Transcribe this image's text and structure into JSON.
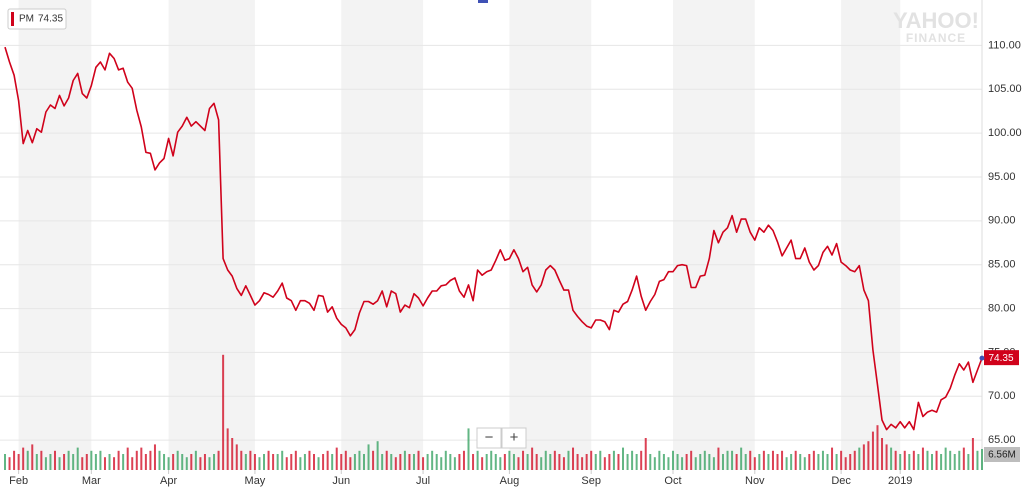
{
  "chart_data": {
    "type": "line",
    "series": [
      {
        "name": "PM",
        "color": "#d0021b",
        "values": [
          109.8,
          108.1,
          106.6,
          103.7,
          98.8,
          100.3,
          98.9,
          100.5,
          100.1,
          102.4,
          103.2,
          102.8,
          104.3,
          103.1,
          104.0,
          106.0,
          106.8,
          104.5,
          104.0,
          105.4,
          107.5,
          108.1,
          107.2,
          109.1,
          108.5,
          107.2,
          107.4,
          105.8,
          105.1,
          102.6,
          100.7,
          97.8,
          97.7,
          95.8,
          96.6,
          97.1,
          99.4,
          97.4,
          100.1,
          100.8,
          101.8,
          100.8,
          101.3,
          100.8,
          100.3,
          102.8,
          103.4,
          101.5,
          85.7,
          84.4,
          83.7,
          82.3,
          81.5,
          82.6,
          81.5,
          80.4,
          80.9,
          81.8,
          81.6,
          81.3,
          82.0,
          82.9,
          81.2,
          80.9,
          79.8,
          80.9,
          80.9,
          80.6,
          79.8,
          81.5,
          81.4,
          79.6,
          80.2,
          78.9,
          78.2,
          77.8,
          76.9,
          77.6,
          79.5,
          80.8,
          80.8,
          80.5,
          80.9,
          82.0,
          80.2,
          82.0,
          81.7,
          79.6,
          80.4,
          80.1,
          81.7,
          81.2,
          80.3,
          81.2,
          82.0,
          82.0,
          82.6,
          82.7,
          83.2,
          83.5,
          82.0,
          81.3,
          82.7,
          80.9,
          84.4,
          83.8,
          84.2,
          84.4,
          85.5,
          86.7,
          85.5,
          85.7,
          86.7,
          85.7,
          84.2,
          84.7,
          82.7,
          81.9,
          82.7,
          84.4,
          84.9,
          84.4,
          83.2,
          82.1,
          82.1,
          79.8,
          79.1,
          78.5,
          78.0,
          77.8,
          78.7,
          78.7,
          78.5,
          77.6,
          79.8,
          79.6,
          80.5,
          80.8,
          82.1,
          83.7,
          81.4,
          79.8,
          80.8,
          81.6,
          83.1,
          83.3,
          84.2,
          84.2,
          84.9,
          85.0,
          84.9,
          82.4,
          82.4,
          83.7,
          83.8,
          85.7,
          88.9,
          87.5,
          88.7,
          89.2,
          90.6,
          88.7,
          90.2,
          90.2,
          88.7,
          87.8,
          89.2,
          88.7,
          89.5,
          88.9,
          87.6,
          86.0,
          86.9,
          87.8,
          85.7,
          85.7,
          86.9,
          85.3,
          84.4,
          84.9,
          86.4,
          87.1,
          86.1,
          87.4,
          85.3,
          84.9,
          84.4,
          84.2,
          84.9,
          82.1,
          80.9,
          75.3,
          71.3,
          67.3,
          66.2,
          66.8,
          66.4,
          67.1,
          66.4,
          67.1,
          66.2,
          69.3,
          67.7,
          68.2,
          68.4,
          68.2,
          69.6,
          69.9,
          70.9,
          72.4,
          73.7,
          73.0,
          73.9,
          71.6,
          73.0,
          74.35
        ]
      }
    ],
    "xlim": [
      0,
      215
    ],
    "xticks": [
      {
        "value": 3,
        "label": "Feb"
      },
      {
        "value": 19,
        "label": "Mar"
      },
      {
        "value": 36,
        "label": "Apr"
      },
      {
        "value": 55,
        "label": "May"
      },
      {
        "value": 74,
        "label": "Jun"
      },
      {
        "value": 92,
        "label": "Jul"
      },
      {
        "value": 111,
        "label": "Aug"
      },
      {
        "value": 129,
        "label": "Sep"
      },
      {
        "value": 147,
        "label": "Oct"
      },
      {
        "value": 165,
        "label": "Nov"
      },
      {
        "value": 184,
        "label": "Dec"
      },
      {
        "value": 197,
        "label": "2019"
      }
    ],
    "ylim": [
      61.6,
      114.6
    ],
    "yticks": [
      {
        "value": 65,
        "label": "65.00"
      },
      {
        "value": 70,
        "label": "70.00"
      },
      {
        "value": 75,
        "label": "75.00"
      },
      {
        "value": 80,
        "label": "80.00"
      },
      {
        "value": 85,
        "label": "85.00"
      },
      {
        "value": 90,
        "label": "90.00"
      },
      {
        "value": 95,
        "label": "95.00"
      },
      {
        "value": 100,
        "label": "100.00"
      },
      {
        "value": 105,
        "label": "105.00"
      },
      {
        "value": 110,
        "label": "110.00"
      }
    ],
    "grid": true,
    "shaded_bands": true,
    "volume": {
      "values": [
        5,
        4,
        6,
        5,
        7,
        6,
        8,
        5,
        6,
        4,
        5,
        6,
        4,
        5,
        6,
        5,
        7,
        4,
        5,
        6,
        5,
        6,
        4,
        5,
        4,
        6,
        5,
        7,
        4,
        6,
        7,
        5,
        6,
        8,
        6,
        5,
        4,
        5,
        6,
        5,
        4,
        5,
        6,
        4,
        5,
        4,
        5,
        6,
        36,
        13,
        10,
        8,
        6,
        5,
        6,
        5,
        4,
        5,
        6,
        5,
        5,
        6,
        4,
        5,
        6,
        4,
        5,
        6,
        5,
        4,
        5,
        6,
        5,
        7,
        5,
        6,
        4,
        5,
        6,
        5,
        8,
        6,
        9,
        5,
        6,
        5,
        4,
        5,
        6,
        5,
        5,
        6,
        4,
        5,
        6,
        5,
        4,
        6,
        5,
        4,
        5,
        6,
        13,
        5,
        6,
        4,
        5,
        6,
        5,
        4,
        5,
        6,
        5,
        4,
        6,
        5,
        7,
        5,
        4,
        6,
        5,
        6,
        5,
        4,
        6,
        7,
        5,
        4,
        5,
        6,
        5,
        6,
        4,
        5,
        6,
        5,
        7,
        5,
        6,
        5,
        6,
        10,
        5,
        4,
        6,
        5,
        4,
        6,
        5,
        4,
        5,
        6,
        4,
        5,
        6,
        5,
        4,
        7,
        5,
        6,
        6,
        5,
        7,
        5,
        6,
        4,
        5,
        6,
        5,
        6,
        5,
        6,
        4,
        5,
        6,
        5,
        4,
        5,
        6,
        5,
        6,
        5,
        7,
        5,
        6,
        4,
        5,
        6,
        7,
        8,
        9,
        12,
        14,
        10,
        8,
        7,
        6,
        5,
        6,
        5,
        6,
        5,
        7,
        6,
        5,
        6,
        5,
        7,
        6,
        5,
        6,
        7,
        5,
        10,
        6,
        6.56
      ],
      "ylim": [
        0,
        45
      ],
      "up_color": "#2e9e5b",
      "down_color": "#d0021b",
      "last_label": "6.56M"
    },
    "watermark": [
      "YAHOO!",
      "FINANCE"
    ],
    "zoom_controls": [
      "−",
      "+"
    ]
  }
}
